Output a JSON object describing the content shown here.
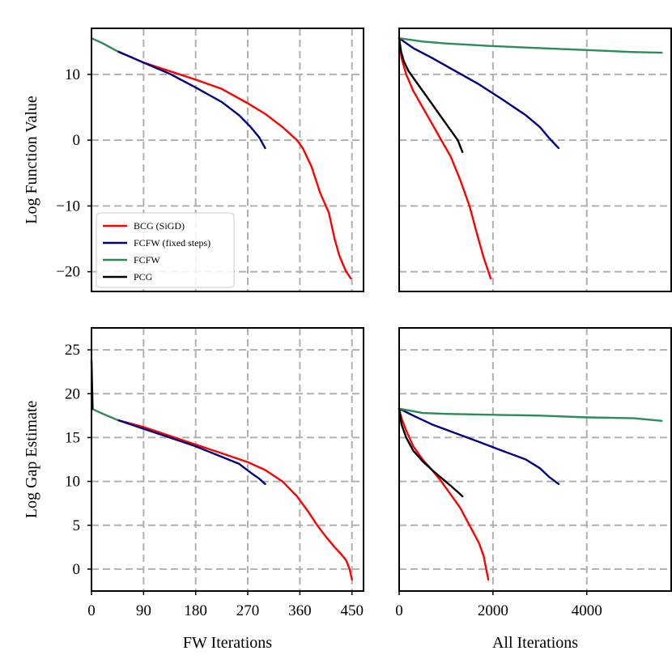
{
  "chart_data": [
    {
      "type": "line",
      "panel": "top-left",
      "xlabel": "",
      "ylabel": "Log Function Value",
      "xlim": [
        0,
        470
      ],
      "ylim": [
        -23,
        17
      ],
      "xgrid": [
        90,
        180,
        270,
        360,
        450
      ],
      "ygrid": [
        -20,
        -10,
        0,
        10
      ],
      "xticks": [],
      "yticks": [
        {
          "v": 10,
          "label": "10"
        },
        {
          "v": 0,
          "label": "0"
        },
        {
          "v": -10,
          "label": "−10"
        },
        {
          "v": -20,
          "label": "−20"
        }
      ],
      "series": [
        {
          "name": "BCG (SiGD)",
          "color": "#ff0000",
          "points": [
            [
              45,
              13.5
            ],
            [
              90,
              11.8
            ],
            [
              135,
              10.5
            ],
            [
              180,
              9.2
            ],
            [
              225,
              7.8
            ],
            [
              270,
              5.6
            ],
            [
              300,
              4.0
            ],
            [
              330,
              2.0
            ],
            [
              355,
              0
            ],
            [
              365,
              -1.2
            ],
            [
              380,
              -4
            ],
            [
              395,
              -8
            ],
            [
              410,
              -11
            ],
            [
              420,
              -15
            ],
            [
              428,
              -17.5
            ],
            [
              435,
              -19
            ],
            [
              440,
              -20
            ],
            [
              448,
              -21
            ]
          ]
        },
        {
          "name": "FCFW (fixed steps)",
          "color": "#000080",
          "points": [
            [
              45,
              13.5
            ],
            [
              90,
              11.8
            ],
            [
              135,
              10.1
            ],
            [
              180,
              8.0
            ],
            [
              225,
              5.8
            ],
            [
              255,
              3.8
            ],
            [
              275,
              2.0
            ],
            [
              290,
              0.4
            ],
            [
              300,
              -1.2
            ]
          ]
        },
        {
          "name": "FCFW",
          "color": "#2e8b57",
          "points": [
            [
              0,
              15.5
            ],
            [
              20,
              14.7
            ],
            [
              45,
              13.5
            ]
          ]
        },
        {
          "name": "PCG",
          "color": "#000000",
          "points": []
        }
      ],
      "legend": {
        "position": "bottom-left",
        "entries": [
          {
            "label": "BCG (SiGD)",
            "color": "#ff0000"
          },
          {
            "label": "FCFW (fixed steps)",
            "color": "#000080"
          },
          {
            "label": "FCFW",
            "color": "#2e8b57"
          },
          {
            "label": "PCG",
            "color": "#000000"
          }
        ]
      }
    },
    {
      "type": "line",
      "panel": "top-right",
      "xlabel": "",
      "ylabel": "",
      "xlim": [
        0,
        5800
      ],
      "ylim": [
        -23,
        17
      ],
      "xgrid": [
        2000,
        4000
      ],
      "ygrid": [
        -20,
        -10,
        0,
        10
      ],
      "xticks": [],
      "yticks": [],
      "series": [
        {
          "name": "BCG (SiGD)",
          "color": "#ff0000",
          "points": [
            [
              0,
              15.5
            ],
            [
              50,
              12.5
            ],
            [
              150,
              10.0
            ],
            [
              300,
              7.5
            ],
            [
              500,
              5.0
            ],
            [
              700,
              2.5
            ],
            [
              900,
              0
            ],
            [
              1100,
              -2.5
            ],
            [
              1300,
              -6
            ],
            [
              1500,
              -10
            ],
            [
              1650,
              -14
            ],
            [
              1800,
              -17.8
            ],
            [
              1950,
              -21
            ]
          ]
        },
        {
          "name": "FCFW (fixed steps)",
          "color": "#000080",
          "points": [
            [
              0,
              15.5
            ],
            [
              300,
              14.0
            ],
            [
              700,
              12.5
            ],
            [
              1200,
              10.5
            ],
            [
              1700,
              8.5
            ],
            [
              2200,
              6.2
            ],
            [
              2700,
              3.8
            ],
            [
              3000,
              2.0
            ],
            [
              3200,
              0.3
            ],
            [
              3400,
              -1.2
            ]
          ]
        },
        {
          "name": "FCFW",
          "color": "#2e8b57",
          "points": [
            [
              0,
              15.5
            ],
            [
              500,
              15.0
            ],
            [
              1000,
              14.7
            ],
            [
              2000,
              14.3
            ],
            [
              3000,
              14.0
            ],
            [
              4000,
              13.7
            ],
            [
              5000,
              13.4
            ],
            [
              5600,
              13.3
            ]
          ]
        },
        {
          "name": "PCG",
          "color": "#000000",
          "points": [
            [
              0,
              15.5
            ],
            [
              40,
              13.5
            ],
            [
              100,
              12.0
            ],
            [
              200,
              10.5
            ],
            [
              350,
              9.0
            ],
            [
              500,
              7.5
            ],
            [
              700,
              5.5
            ],
            [
              900,
              3.5
            ],
            [
              1100,
              1.5
            ],
            [
              1250,
              0
            ],
            [
              1350,
              -1.8
            ]
          ]
        }
      ]
    },
    {
      "type": "line",
      "panel": "bottom-left",
      "xlabel": "FW Iterations",
      "ylabel": "Log Gap Estimate",
      "xlim": [
        0,
        470
      ],
      "ylim": [
        -2.5,
        27.5
      ],
      "xgrid": [
        90,
        180,
        270,
        360,
        450
      ],
      "ygrid": [
        0,
        5,
        10,
        15,
        20,
        25
      ],
      "xticks": [
        {
          "v": 0,
          "label": "0"
        },
        {
          "v": 90,
          "label": "90"
        },
        {
          "v": 180,
          "label": "180"
        },
        {
          "v": 270,
          "label": "270"
        },
        {
          "v": 360,
          "label": "360"
        },
        {
          "v": 450,
          "label": "450"
        }
      ],
      "yticks": [
        {
          "v": 25,
          "label": "25"
        },
        {
          "v": 20,
          "label": "20"
        },
        {
          "v": 15,
          "label": "15"
        },
        {
          "v": 10,
          "label": "10"
        },
        {
          "v": 5,
          "label": "5"
        },
        {
          "v": 0,
          "label": "0"
        }
      ],
      "series": [
        {
          "name": "BCG (SiGD)",
          "color": "#ff0000",
          "points": [
            [
              45,
              17.0
            ],
            [
              90,
              16.2
            ],
            [
              135,
              15.2
            ],
            [
              180,
              14.2
            ],
            [
              225,
              13.2
            ],
            [
              270,
              12.2
            ],
            [
              300,
              11.3
            ],
            [
              330,
              10.0
            ],
            [
              355,
              8.3
            ],
            [
              375,
              6.5
            ],
            [
              390,
              5.0
            ],
            [
              405,
              3.7
            ],
            [
              420,
              2.5
            ],
            [
              430,
              1.8
            ],
            [
              440,
              1.0
            ],
            [
              446,
              0
            ],
            [
              450,
              -1.2
            ]
          ]
        },
        {
          "name": "FCFW (fixed steps)",
          "color": "#000080",
          "points": [
            [
              45,
              17.0
            ],
            [
              90,
              16.0
            ],
            [
              135,
              15.0
            ],
            [
              180,
              14.0
            ],
            [
              225,
              12.8
            ],
            [
              255,
              12.0
            ],
            [
              275,
              11.0
            ],
            [
              290,
              10.3
            ],
            [
              300,
              9.7
            ]
          ]
        },
        {
          "name": "FCFW",
          "color": "#2e8b57",
          "points": [
            [
              0,
              18.3
            ],
            [
              20,
              17.7
            ],
            [
              45,
              17.0
            ]
          ]
        },
        {
          "name": "PCG",
          "color": "#000000",
          "points": [
            [
              0,
              23.8
            ],
            [
              2,
              18.3
            ]
          ]
        }
      ]
    },
    {
      "type": "line",
      "panel": "bottom-right",
      "xlabel": "All Iterations",
      "ylabel": "",
      "xlim": [
        0,
        5800
      ],
      "ylim": [
        -2.5,
        27.5
      ],
      "xgrid": [
        2000,
        4000
      ],
      "ygrid": [
        0,
        5,
        10,
        15,
        20,
        25
      ],
      "xticks": [
        {
          "v": 0,
          "label": "0"
        },
        {
          "v": 2000,
          "label": "2000"
        },
        {
          "v": 4000,
          "label": "4000"
        }
      ],
      "yticks": [],
      "series": [
        {
          "name": "BCG (SiGD)",
          "color": "#ff0000",
          "points": [
            [
              0,
              18.3
            ],
            [
              50,
              17.2
            ],
            [
              150,
              15.8
            ],
            [
              300,
              14.0
            ],
            [
              500,
              12.5
            ],
            [
              700,
              11.3
            ],
            [
              900,
              10.0
            ],
            [
              1100,
              8.5
            ],
            [
              1300,
              7.0
            ],
            [
              1500,
              5.0
            ],
            [
              1700,
              3.0
            ],
            [
              1800,
              1.5
            ],
            [
              1900,
              -1.2
            ]
          ]
        },
        {
          "name": "FCFW (fixed steps)",
          "color": "#000080",
          "points": [
            [
              0,
              18.3
            ],
            [
              300,
              17.5
            ],
            [
              700,
              16.5
            ],
            [
              1200,
              15.5
            ],
            [
              1700,
              14.5
            ],
            [
              2200,
              13.5
            ],
            [
              2700,
              12.5
            ],
            [
              3000,
              11.5
            ],
            [
              3200,
              10.5
            ],
            [
              3400,
              9.7
            ]
          ]
        },
        {
          "name": "FCFW",
          "color": "#2e8b57",
          "points": [
            [
              0,
              18.3
            ],
            [
              500,
              17.8
            ],
            [
              1000,
              17.7
            ],
            [
              2000,
              17.6
            ],
            [
              3000,
              17.5
            ],
            [
              4000,
              17.3
            ],
            [
              5000,
              17.2
            ],
            [
              5600,
              16.9
            ]
          ]
        },
        {
          "name": "PCG",
          "color": "#000000",
          "points": [
            [
              0,
              18.3
            ],
            [
              50,
              16.5
            ],
            [
              150,
              15.0
            ],
            [
              300,
              13.5
            ],
            [
              500,
              12.3
            ],
            [
              700,
              11.3
            ],
            [
              900,
              10.4
            ],
            [
              1100,
              9.5
            ],
            [
              1250,
              8.8
            ],
            [
              1350,
              8.3
            ]
          ]
        }
      ]
    }
  ]
}
